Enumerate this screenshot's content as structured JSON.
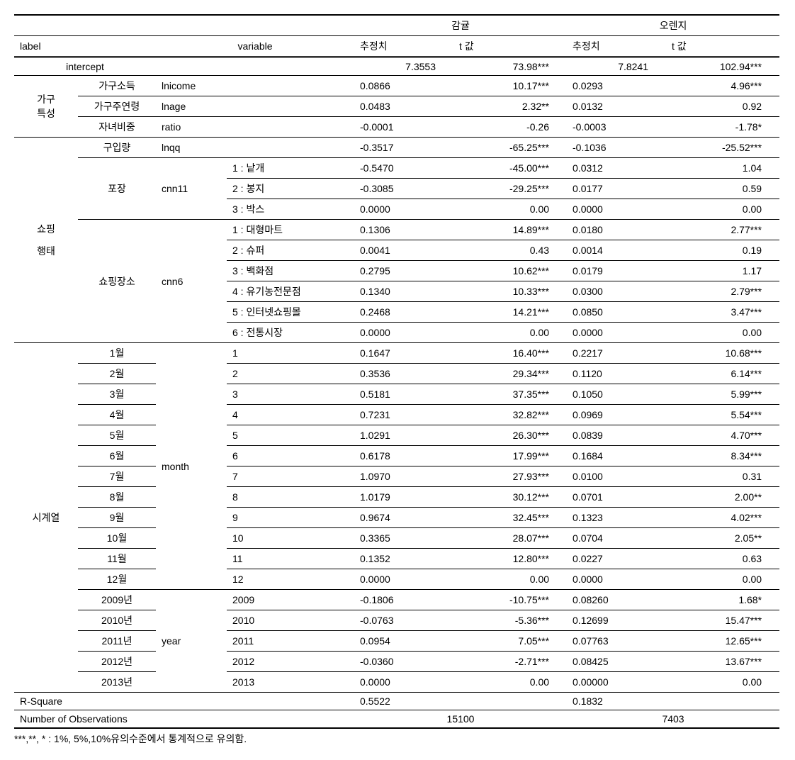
{
  "header": {
    "group1": "감귤",
    "group2": "오렌지",
    "label": "label",
    "variable": "variable",
    "est": "추정치",
    "tval": "t 값"
  },
  "sections": {
    "intercept": "intercept",
    "house": "가구\n특성",
    "house_sub": {
      "income": "가구소득",
      "age": "가구주연령",
      "ratio": "자녀비중"
    },
    "shop": "쇼핑\n행태",
    "shop_sub": {
      "qty": "구입량",
      "pack": "포장",
      "place": "쇼핑장소"
    },
    "var": {
      "income": "lnicome",
      "age": "lnage",
      "ratio": "ratio",
      "qty": "lnqq",
      "pack": "cnn11",
      "place": "cnn6",
      "month": "month",
      "year": "year"
    },
    "pack_lv": {
      "1": "1 : 낱개",
      "2": "2 : 봉지",
      "3": "3 : 박스"
    },
    "place_lv": {
      "1": "1 : 대형마트",
      "2": "2 : 슈퍼",
      "3": "3 : 백화점",
      "4": "4 : 유기농전문점",
      "5": "5 : 인터넷쇼핑몰",
      "6": "6 : 전통시장"
    },
    "ts": "시계열",
    "month_lab": [
      "1월",
      "2월",
      "3월",
      "4월",
      "5월",
      "6월",
      "7월",
      "8월",
      "9월",
      "10월",
      "11월",
      "12월"
    ],
    "month_lv": [
      "1",
      "2",
      "3",
      "4",
      "5",
      "6",
      "7",
      "8",
      "9",
      "10",
      "11",
      "12"
    ],
    "year_lab": [
      "2009년",
      "2010년",
      "2011년",
      "2012년",
      "2013년"
    ],
    "year_lv": [
      "2009",
      "2010",
      "2011",
      "2012",
      "2013"
    ],
    "rsq": "R-Square",
    "nobs": "Number of Observations"
  },
  "g1": {
    "intercept": {
      "e": "7.3553",
      "t": "73.98***"
    },
    "income": {
      "e": "0.0866",
      "t": "10.17***"
    },
    "age": {
      "e": "0.0483",
      "t": "2.32**"
    },
    "ratio": {
      "e": "-0.0001",
      "t": "-0.26"
    },
    "qty": {
      "e": "-0.3517",
      "t": "-65.25***"
    },
    "pack": [
      {
        "e": "-0.5470",
        "t": "-45.00***"
      },
      {
        "e": "-0.3085",
        "t": "-29.25***"
      },
      {
        "e": "0.0000",
        "t": "0.00"
      }
    ],
    "place": [
      {
        "e": "0.1306",
        "t": "14.89***"
      },
      {
        "e": "0.0041",
        "t": "0.43"
      },
      {
        "e": "0.2795",
        "t": "10.62***"
      },
      {
        "e": "0.1340",
        "t": "10.33***"
      },
      {
        "e": "0.2468",
        "t": "14.21***"
      },
      {
        "e": "0.0000",
        "t": "0.00"
      }
    ],
    "month": [
      {
        "e": "0.1647",
        "t": "16.40***"
      },
      {
        "e": "0.3536",
        "t": "29.34***"
      },
      {
        "e": "0.5181",
        "t": "37.35***"
      },
      {
        "e": "0.7231",
        "t": "32.82***"
      },
      {
        "e": "1.0291",
        "t": "26.30***"
      },
      {
        "e": "0.6178",
        "t": "17.99***"
      },
      {
        "e": "1.0970",
        "t": "27.93***"
      },
      {
        "e": "1.0179",
        "t": "30.12***"
      },
      {
        "e": "0.9674",
        "t": "32.45***"
      },
      {
        "e": "0.3365",
        "t": "28.07***"
      },
      {
        "e": "0.1352",
        "t": "12.80***"
      },
      {
        "e": "0.0000",
        "t": "0.00"
      }
    ],
    "year": [
      {
        "e": "-0.1806",
        "t": "-10.75***"
      },
      {
        "e": "-0.0763",
        "t": "-5.36***"
      },
      {
        "e": "0.0954",
        "t": "7.05***"
      },
      {
        "e": "-0.0360",
        "t": "-2.71***"
      },
      {
        "e": "0.0000",
        "t": "0.00"
      }
    ],
    "rsq": "0.5522",
    "nobs": "15100"
  },
  "g2": {
    "intercept": {
      "e": "7.8241",
      "t": "102.94***"
    },
    "income": {
      "e": "0.0293",
      "t": "4.96***"
    },
    "age": {
      "e": "0.0132",
      "t": "0.92"
    },
    "ratio": {
      "e": "-0.0003",
      "t": "-1.78*"
    },
    "qty": {
      "e": "-0.1036",
      "t": "-25.52***"
    },
    "pack": [
      {
        "e": "0.0312",
        "t": "1.04"
      },
      {
        "e": "0.0177",
        "t": "0.59"
      },
      {
        "e": "0.0000",
        "t": "0.00"
      }
    ],
    "place": [
      {
        "e": "0.0180",
        "t": "2.77***"
      },
      {
        "e": "0.0014",
        "t": "0.19"
      },
      {
        "e": "0.0179",
        "t": "1.17"
      },
      {
        "e": "0.0300",
        "t": "2.79***"
      },
      {
        "e": "0.0850",
        "t": "3.47***"
      },
      {
        "e": "0.0000",
        "t": "0.00"
      }
    ],
    "month": [
      {
        "e": "0.2217",
        "t": "10.68***"
      },
      {
        "e": "0.1120",
        "t": "6.14***"
      },
      {
        "e": "0.1050",
        "t": "5.99***"
      },
      {
        "e": "0.0969",
        "t": "5.54***"
      },
      {
        "e": "0.0839",
        "t": "4.70***"
      },
      {
        "e": "0.1684",
        "t": "8.34***"
      },
      {
        "e": "0.0100",
        "t": "0.31"
      },
      {
        "e": "0.0701",
        "t": "2.00**"
      },
      {
        "e": "0.1323",
        "t": "4.02***"
      },
      {
        "e": "0.0704",
        "t": "2.05**"
      },
      {
        "e": "0.0227",
        "t": "0.63"
      },
      {
        "e": "0.0000",
        "t": "0.00"
      }
    ],
    "year": [
      {
        "e": "0.08260",
        "t": "1.68*"
      },
      {
        "e": "0.12699",
        "t": "15.47***"
      },
      {
        "e": "0.07763",
        "t": "12.65***"
      },
      {
        "e": "0.08425",
        "t": "13.67***"
      },
      {
        "e": "0.00000",
        "t": "0.00"
      }
    ],
    "rsq": "0.1832",
    "nobs": "7403"
  },
  "footnote": "***,**, * : 1%, 5%,10%유의수준에서 통계적으로 유의함."
}
